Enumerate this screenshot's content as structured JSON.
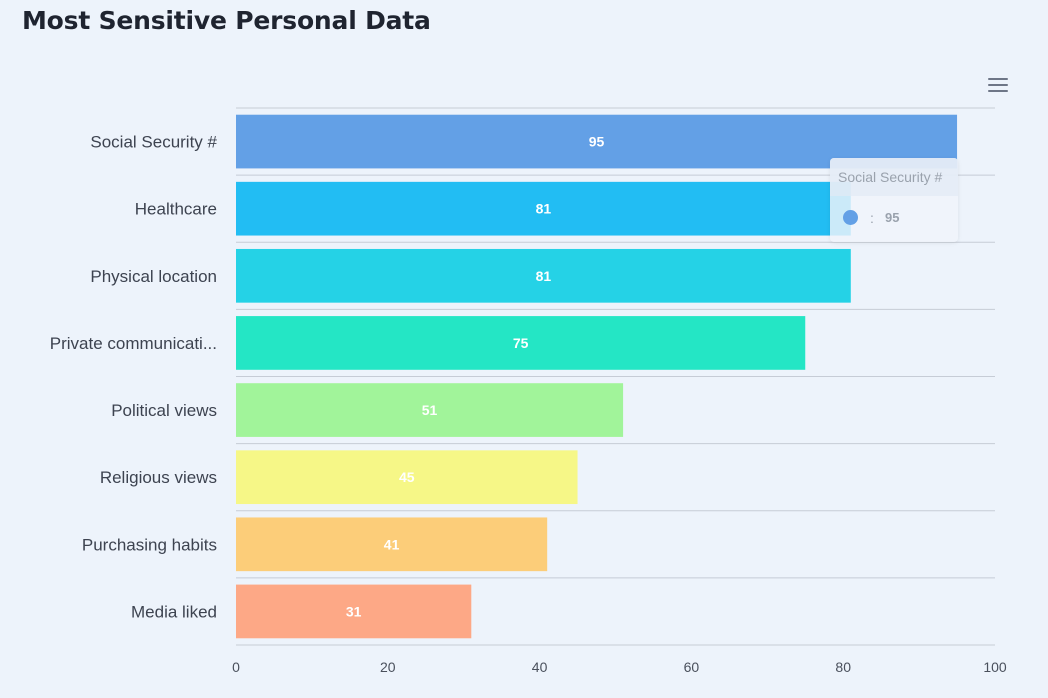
{
  "title": "Most Sensitive Personal Data",
  "menu_icon": "hamburger-menu-icon",
  "chart_data": {
    "type": "bar",
    "orientation": "horizontal",
    "categories": [
      "Social Security #",
      "Healthcare",
      "Physical location",
      "Private communicati...",
      "Political views",
      "Religious views",
      "Purchasing habits",
      "Media liked"
    ],
    "values": [
      95,
      81,
      81,
      75,
      51,
      45,
      41,
      31
    ],
    "colors": [
      "#63a0e6",
      "#22bdf3",
      "#25d2e6",
      "#24e6c5",
      "#a1f49a",
      "#f6f787",
      "#fccd79",
      "#fda886"
    ],
    "xlim": [
      0,
      100
    ],
    "xticks": [
      "0",
      "20",
      "40",
      "60",
      "80",
      "100"
    ],
    "grid": true,
    "data_labels": true
  },
  "tooltip": {
    "category": "Social Security #",
    "separator": ":",
    "value": "95",
    "color": "#63a0e6"
  }
}
